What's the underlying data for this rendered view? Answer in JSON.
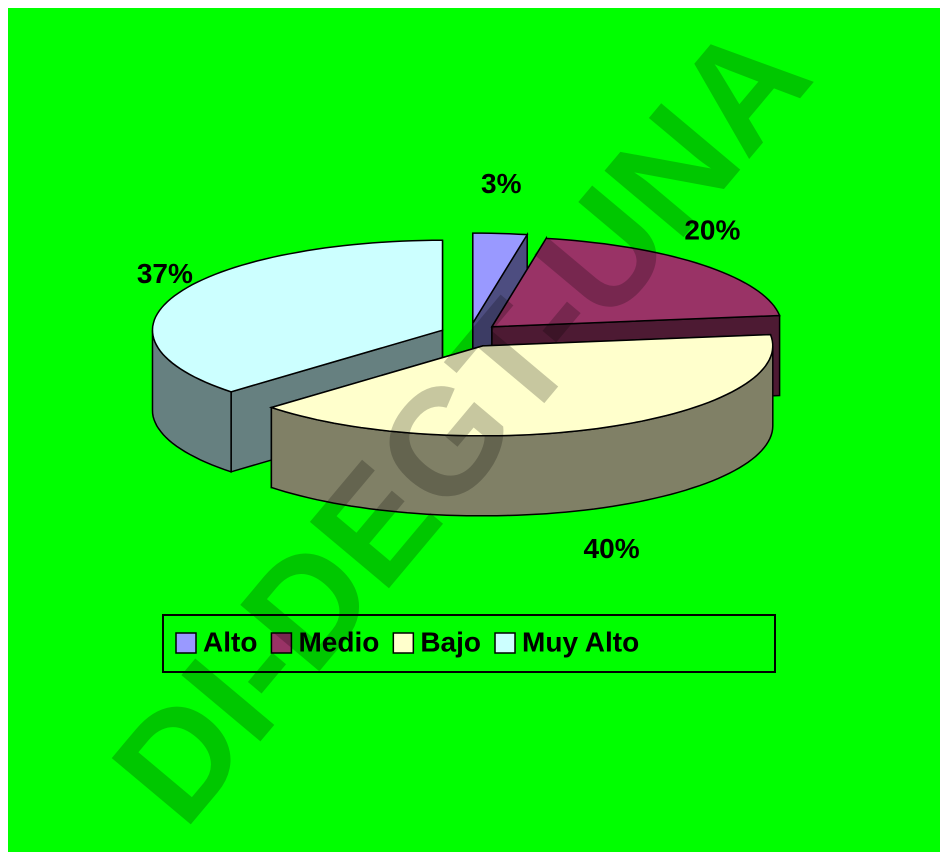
{
  "chart_data": {
    "type": "pie",
    "categories": [
      "Alto",
      "Medio",
      "Bajo",
      "Muy Alto"
    ],
    "values": [
      3,
      20,
      40,
      37
    ],
    "value_labels": [
      "3%",
      "20%",
      "40%",
      "37%"
    ],
    "colors": [
      "#9999ff",
      "#993366",
      "#ffffcc",
      "#ccffff"
    ],
    "background": "#00ff00",
    "legend": "bottom",
    "watermark": "DI-DEGT-UNA"
  }
}
